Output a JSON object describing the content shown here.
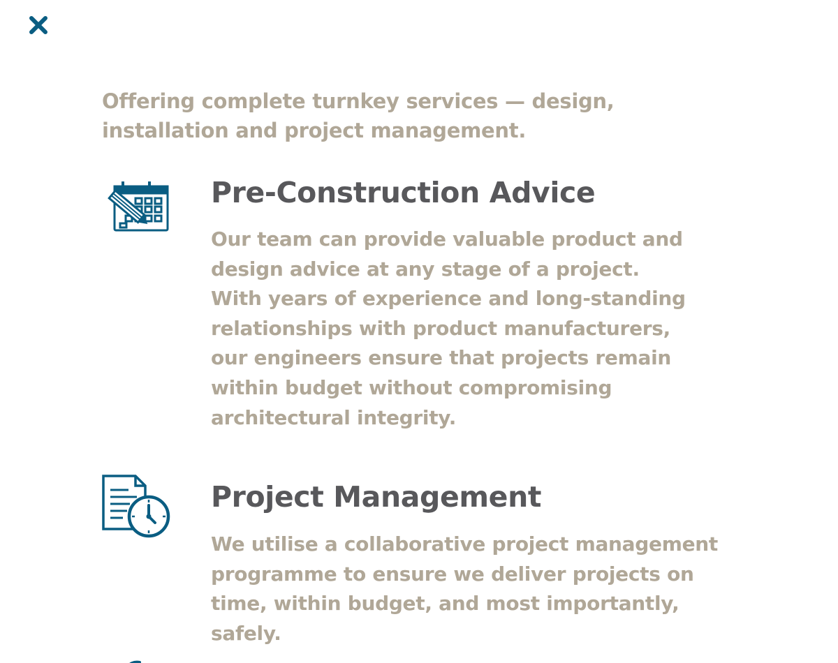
{
  "close": {
    "icon": "close-icon",
    "color": "#0a5d82"
  },
  "intro": {
    "text": "Offering complete turnkey services — design, installation and project management."
  },
  "services": [
    {
      "icon": "calendar-edit-icon",
      "title": "Pre-Construction Advice",
      "description": "Our team can provide valuable product and design advice at any stage of a project. With years of experience and long-standing relationships with product manufacturers, our engineers ensure that projects remain within budget without compromising architectural integrity."
    },
    {
      "icon": "document-clock-icon",
      "title": "Project Management",
      "description": "We utilise a collaborative project management programme to ensure we deliver projects on time, within budget, and most importantly, safely."
    }
  ],
  "colors": {
    "accent": "#0a5d82",
    "heading": "#58585b",
    "body_text": "#b0a797",
    "background": "#ffffff"
  }
}
